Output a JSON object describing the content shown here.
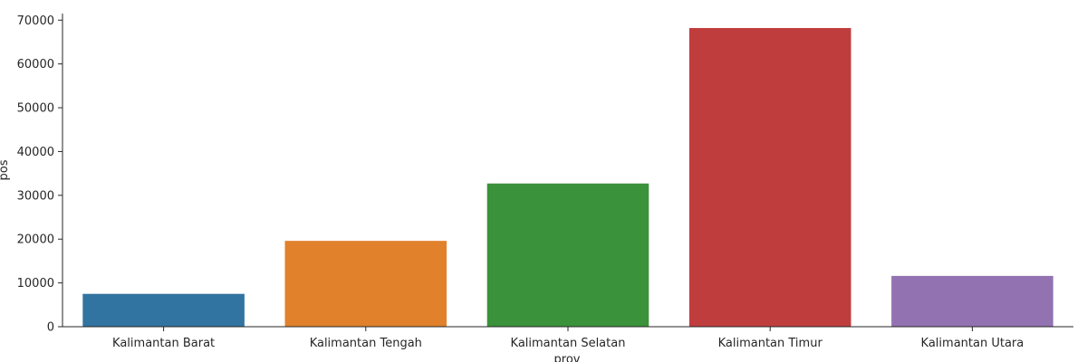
{
  "chart_data": {
    "type": "bar",
    "title": "",
    "xlabel": "prov",
    "ylabel": "pos",
    "categories": [
      "Kalimantan Barat",
      "Kalimantan Tengah",
      "Kalimantan Selatan",
      "Kalimantan Timur",
      "Kalimantan Utara"
    ],
    "values": [
      7500,
      19600,
      32700,
      68200,
      11600
    ],
    "colors": [
      "#3274a1",
      "#e1812c",
      "#3a923a",
      "#c03d3e",
      "#9372b2"
    ],
    "ylim": [
      0,
      71500
    ],
    "yticks": [
      0,
      10000,
      20000,
      30000,
      40000,
      50000,
      60000,
      70000
    ],
    "grid": false,
    "legend": "none"
  }
}
